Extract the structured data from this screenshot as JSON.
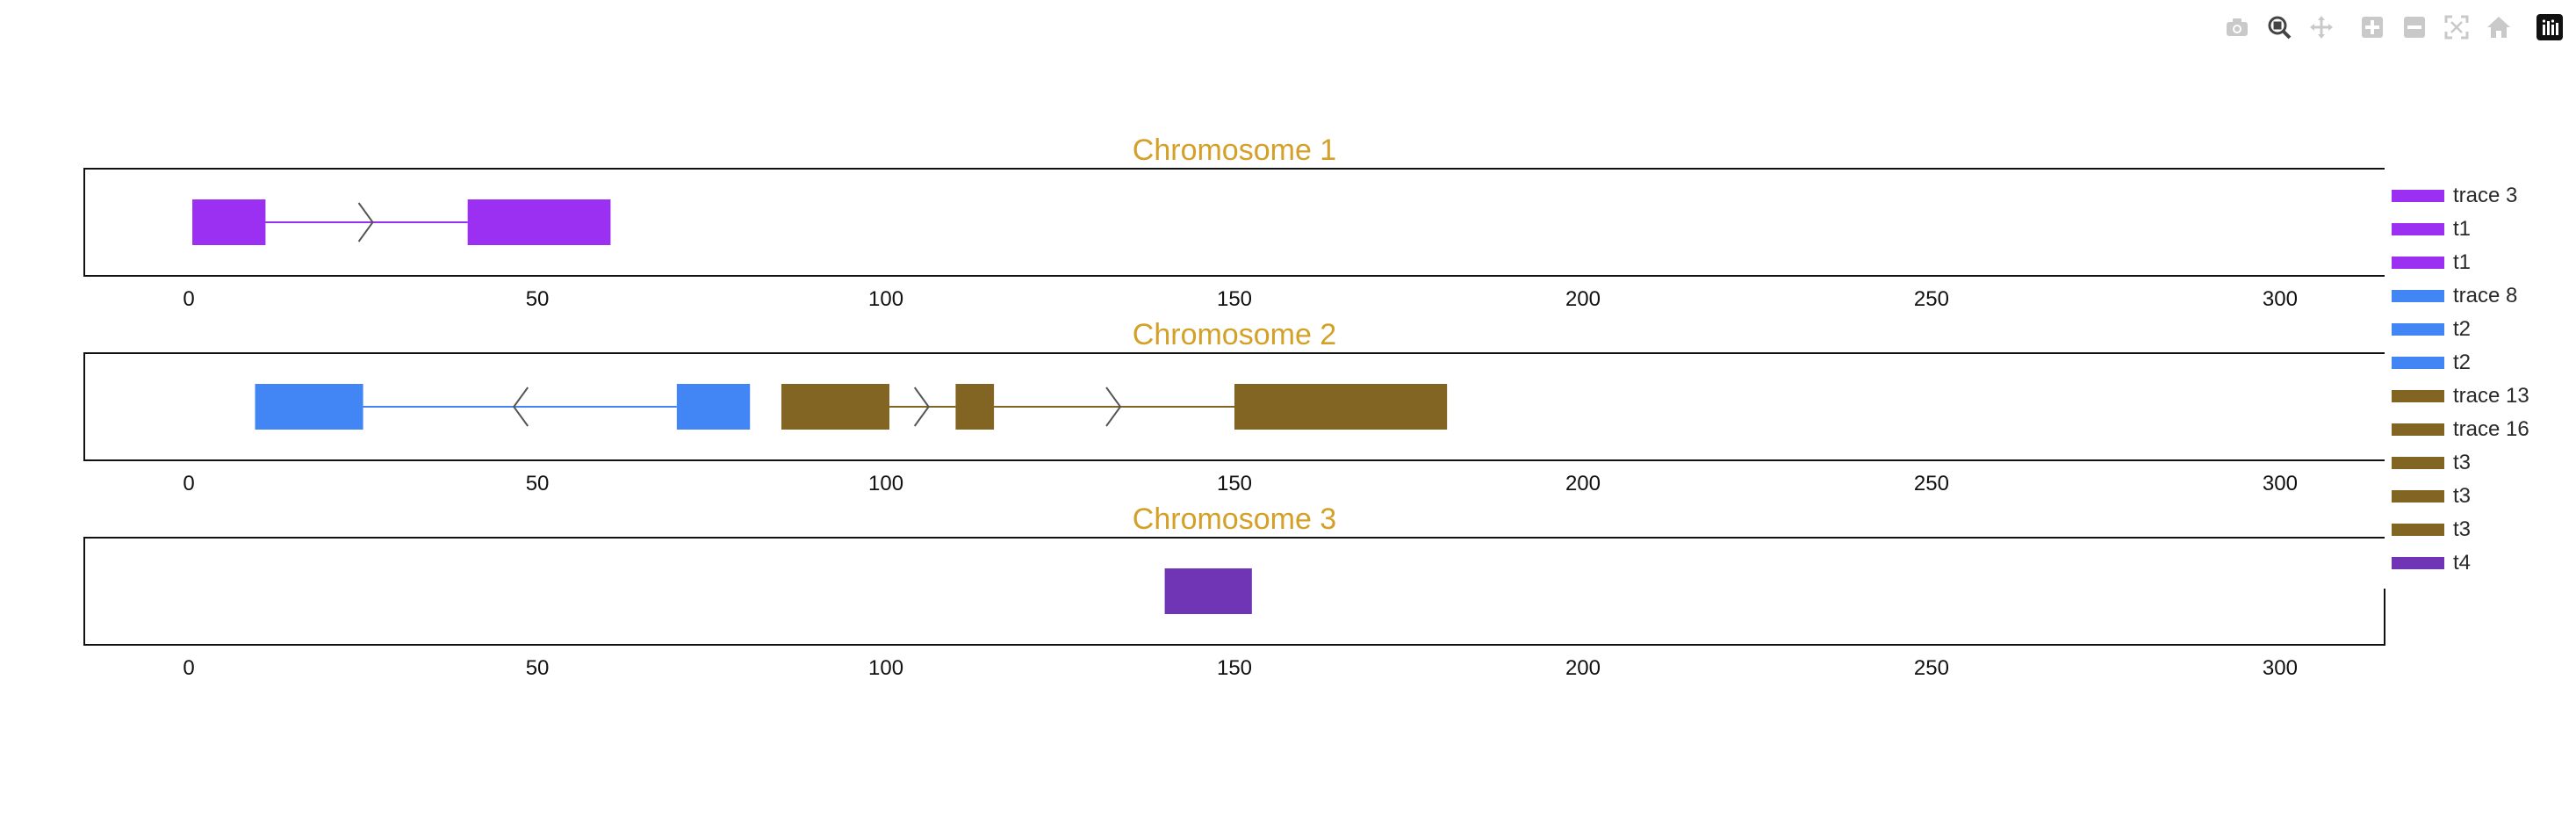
{
  "modebar": {
    "buttons": [
      {
        "name": "camera-icon",
        "title": "Download plot as a png",
        "active": false
      },
      {
        "name": "zoom-icon",
        "title": "Zoom",
        "active": true
      },
      {
        "name": "pan-icon",
        "title": "Pan",
        "active": false
      },
      {
        "name": "zoom-in-icon",
        "title": "Zoom in",
        "active": false
      },
      {
        "name": "zoom-out-icon",
        "title": "Zoom out",
        "active": false
      },
      {
        "name": "autoscale-icon",
        "title": "Autoscale",
        "active": false
      },
      {
        "name": "home-icon",
        "title": "Reset axes",
        "active": false
      },
      {
        "name": "plotly-logo-icon",
        "title": "Produced with Plotly",
        "active": false
      }
    ]
  },
  "legend": {
    "items": [
      {
        "label": "trace 3",
        "color": "#9b30f2"
      },
      {
        "label": "t1",
        "color": "#9b30f2"
      },
      {
        "label": "t1",
        "color": "#9b30f2"
      },
      {
        "label": "trace 8",
        "color": "#4285f4"
      },
      {
        "label": "t2",
        "color": "#4285f4"
      },
      {
        "label": "t2",
        "color": "#4285f4"
      },
      {
        "label": "trace 13",
        "color": "#826523"
      },
      {
        "label": "trace 16",
        "color": "#826523"
      },
      {
        "label": "t3",
        "color": "#826523"
      },
      {
        "label": "t3",
        "color": "#826523"
      },
      {
        "label": "t3",
        "color": "#826523"
      },
      {
        "label": "t4",
        "color": "#6f35b5"
      }
    ]
  },
  "chart_data": [
    {
      "type": "bar",
      "title": "Chromosome 1",
      "title_color": "#d4a027",
      "xlim": [
        -15,
        315
      ],
      "xticks": [
        0,
        50,
        100,
        150,
        200,
        250,
        300
      ],
      "grid": false,
      "features": [
        {
          "kind": "exon",
          "start": 0.5,
          "end": 11,
          "color": "#9b30f2"
        },
        {
          "kind": "intron",
          "start": 11,
          "end": 40,
          "color": "#9b30f2",
          "strand": "+"
        },
        {
          "kind": "exon",
          "start": 40,
          "end": 60.5,
          "color": "#9b30f2"
        }
      ]
    },
    {
      "type": "bar",
      "title": "Chromosome 2",
      "title_color": "#d4a027",
      "xlim": [
        -15,
        315
      ],
      "xticks": [
        0,
        50,
        100,
        150,
        200,
        250,
        300
      ],
      "grid": false,
      "features": [
        {
          "kind": "exon",
          "start": 9.5,
          "end": 25,
          "color": "#4285f4"
        },
        {
          "kind": "intron",
          "start": 25,
          "end": 70,
          "color": "#4285f4",
          "strand": "-"
        },
        {
          "kind": "exon",
          "start": 70,
          "end": 80.5,
          "color": "#4285f4"
        },
        {
          "kind": "exon",
          "start": 85,
          "end": 100.5,
          "color": "#826523"
        },
        {
          "kind": "intron",
          "start": 100.5,
          "end": 110,
          "color": "#826523",
          "strand": "+"
        },
        {
          "kind": "exon",
          "start": 110,
          "end": 115.5,
          "color": "#826523"
        },
        {
          "kind": "intron",
          "start": 115.5,
          "end": 150,
          "color": "#826523",
          "strand": "+"
        },
        {
          "kind": "exon",
          "start": 150,
          "end": 180.5,
          "color": "#826523"
        }
      ]
    },
    {
      "type": "bar",
      "title": "Chromosome 3",
      "title_color": "#d4a027",
      "xlim": [
        -15,
        315
      ],
      "xticks": [
        0,
        50,
        100,
        150,
        200,
        250,
        300
      ],
      "grid": false,
      "features": [
        {
          "kind": "exon",
          "start": 140,
          "end": 152.5,
          "color": "#6f35b5"
        }
      ]
    }
  ]
}
